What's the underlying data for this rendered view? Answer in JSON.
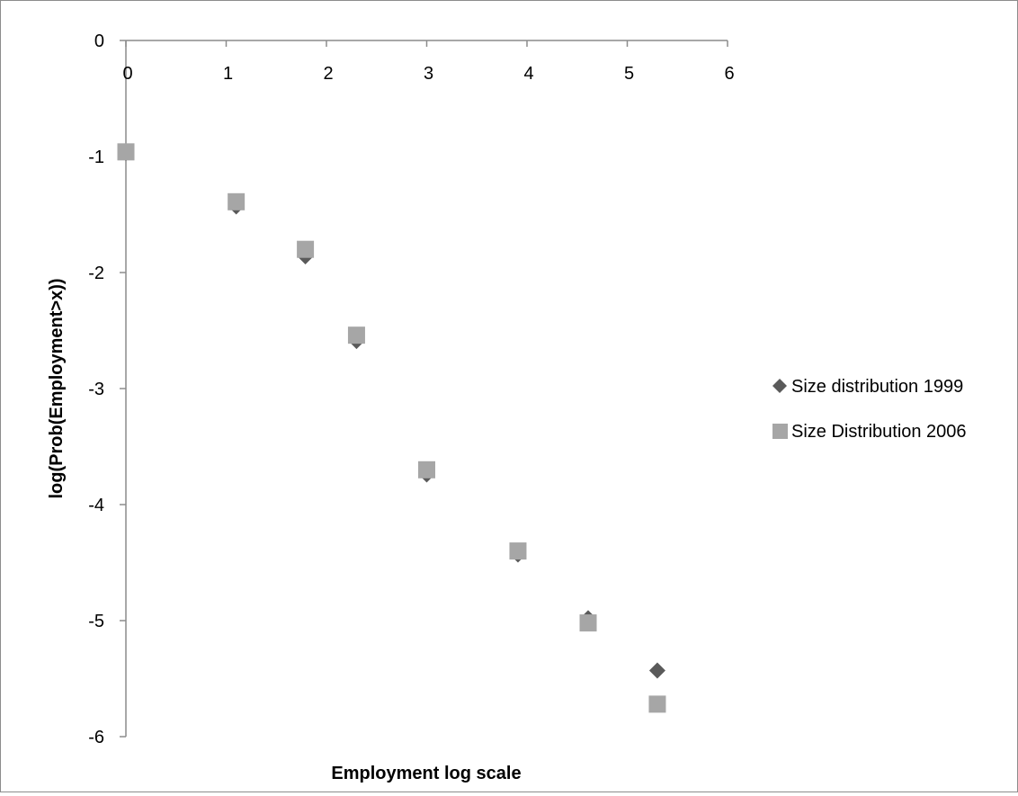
{
  "chart_data": {
    "type": "scatter",
    "title": "",
    "xlabel": "Employment log scale",
    "ylabel": "log(Prob(Employment>x))",
    "xlim": [
      0,
      6
    ],
    "ylim": [
      -6,
      0
    ],
    "xticks": [
      0,
      1,
      2,
      3,
      4,
      5,
      6
    ],
    "yticks": [
      0,
      -1,
      -2,
      -3,
      -4,
      -5,
      -6
    ],
    "grid": false,
    "legend_position": "right",
    "series": [
      {
        "name": "Size distribution 1999",
        "marker": "diamond",
        "color": "#5a5a5a",
        "points": [
          {
            "x": 0.0,
            "y": -0.97
          },
          {
            "x": 1.1,
            "y": -1.43
          },
          {
            "x": 1.79,
            "y": -1.86
          },
          {
            "x": 2.3,
            "y": -2.59
          },
          {
            "x": 3.0,
            "y": -3.74
          },
          {
            "x": 3.91,
            "y": -4.43
          },
          {
            "x": 4.61,
            "y": -4.98
          },
          {
            "x": 5.3,
            "y": -5.43
          }
        ]
      },
      {
        "name": "Size Distribution 2006",
        "marker": "square",
        "color": "#a6a6a6",
        "points": [
          {
            "x": 0.0,
            "y": -0.96
          },
          {
            "x": 1.1,
            "y": -1.39
          },
          {
            "x": 1.79,
            "y": -1.8
          },
          {
            "x": 2.3,
            "y": -2.54
          },
          {
            "x": 3.0,
            "y": -3.7
          },
          {
            "x": 3.91,
            "y": -4.4
          },
          {
            "x": 4.61,
            "y": -5.02
          },
          {
            "x": 5.3,
            "y": -5.72
          }
        ]
      }
    ]
  }
}
